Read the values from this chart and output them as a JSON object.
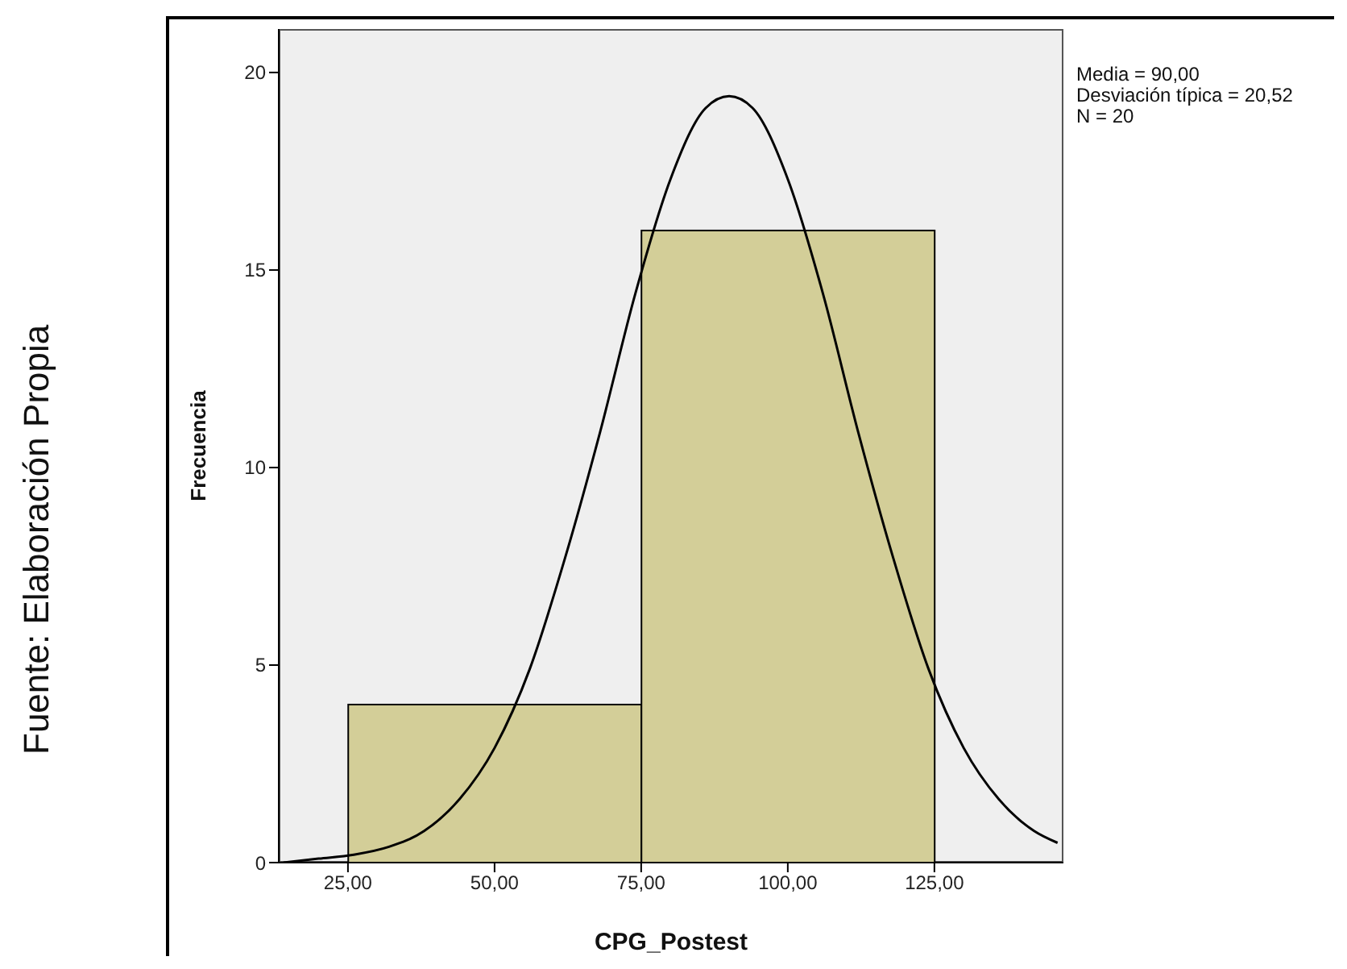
{
  "chart_data": {
    "type": "histogram",
    "xlabel": "CPG_Postest",
    "ylabel": "Frecuencia",
    "bins": [
      25,
      75,
      125
    ],
    "values": [
      4,
      16
    ],
    "color": "#d3ce98",
    "series": [
      {
        "type": "line",
        "color": "#000000",
        "x": [
          14,
          20,
          26,
          32,
          38,
          44,
          50,
          56,
          62,
          68,
          74,
          80,
          86,
          90,
          94,
          100,
          106,
          112,
          118,
          124,
          130,
          136,
          142,
          146
        ],
        "values": [
          0.0,
          0.1,
          0.2,
          0.4,
          0.8,
          1.6,
          2.9,
          4.9,
          7.7,
          10.9,
          14.4,
          17.3,
          19.1,
          19.4,
          19.1,
          17.3,
          14.4,
          10.9,
          7.7,
          4.9,
          2.9,
          1.6,
          0.8,
          0.5
        ]
      }
    ],
    "xlim": [
      13.2,
      147
    ],
    "ylim": [
      0,
      21.1
    ],
    "xticks": [
      {
        "value": 25,
        "label": "25,00"
      },
      {
        "value": 50,
        "label": "50,00"
      },
      {
        "value": 75,
        "label": "75,00"
      },
      {
        "value": 100,
        "label": "100,00"
      },
      {
        "value": 125,
        "label": "125,00"
      }
    ],
    "yticks": [
      0,
      5,
      10,
      15,
      20
    ],
    "marker": "none",
    "line_style": "solid",
    "annotations": [
      "Media = 90,00\nDesviación típica = 20,52\nN = 20",
      "Fuente: Elaboración Propia"
    ]
  }
}
